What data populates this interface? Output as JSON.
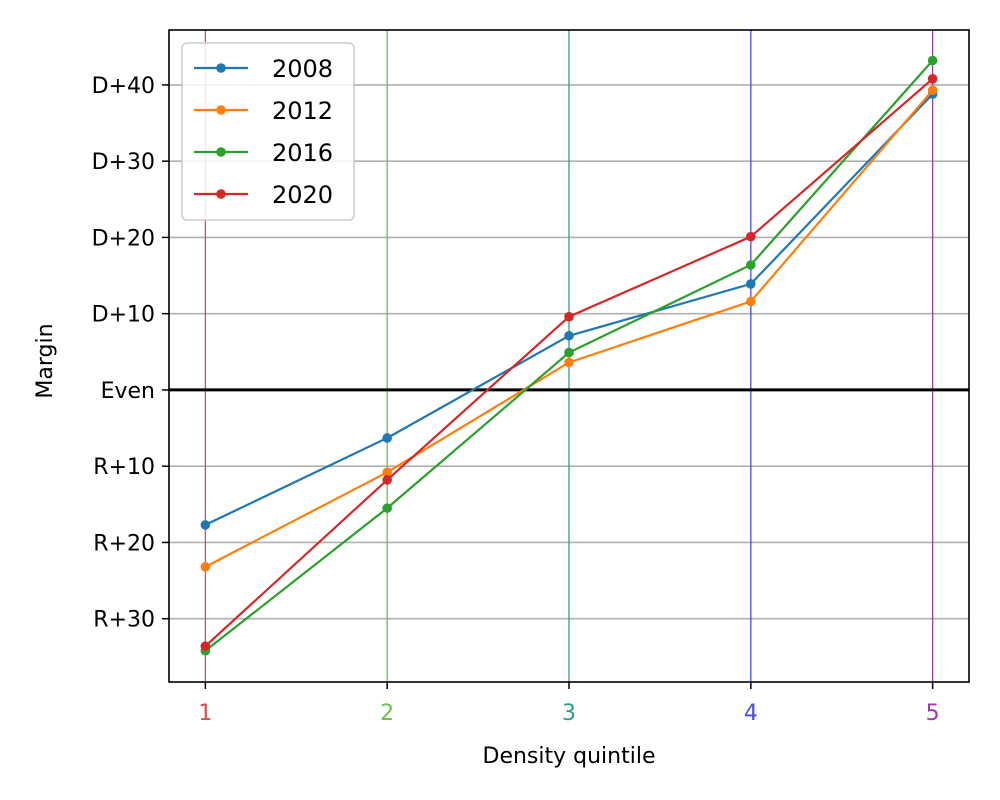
{
  "chart_data": {
    "type": "line",
    "xlabel": "Density quintile",
    "ylabel": "Margin",
    "x": [
      1,
      2,
      3,
      4,
      5
    ],
    "x_tick_labels": [
      "1",
      "2",
      "3",
      "4",
      "5"
    ],
    "x_tick_colors": [
      "#e04a4a",
      "#6cbf45",
      "#2a9d8f",
      "#4a4ae0",
      "#9b3aa6"
    ],
    "xlim": [
      0.8,
      5.2
    ],
    "ylim": [
      -38.3,
      47.2
    ],
    "y_ticks": [
      -30,
      -20,
      -10,
      0,
      10,
      20,
      30,
      40
    ],
    "y_tick_labels": [
      "R+30",
      "R+20",
      "R+10",
      "Even",
      "D+10",
      "D+20",
      "D+30",
      "D+40"
    ],
    "grid": "horizontal",
    "zero_line": true,
    "legend_position": "top-left",
    "series": [
      {
        "name": "2008",
        "color": "#1f77b4",
        "values": [
          -17.7,
          -6.3,
          7.1,
          13.9,
          38.8
        ]
      },
      {
        "name": "2012",
        "color": "#ff7f0e",
        "values": [
          -23.2,
          -10.8,
          3.6,
          11.6,
          39.3
        ]
      },
      {
        "name": "2016",
        "color": "#2ca02c",
        "values": [
          -34.2,
          -15.5,
          4.9,
          16.4,
          43.2
        ]
      },
      {
        "name": "2020",
        "color": "#d62728",
        "values": [
          -33.6,
          -11.8,
          9.6,
          20.1,
          40.8
        ]
      }
    ]
  }
}
